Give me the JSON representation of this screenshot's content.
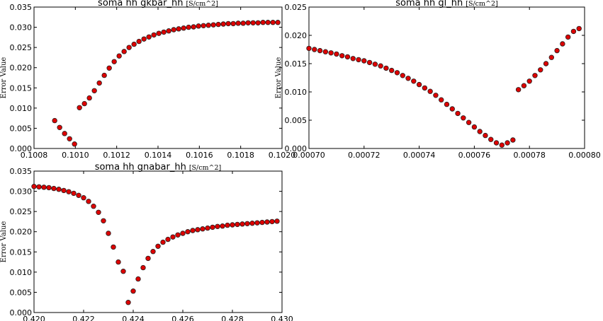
{
  "chart_data": [
    {
      "type": "scatter",
      "title": "soma hh gkbar_hh",
      "title_unit": "[S/cm^2]",
      "xlabel": "",
      "ylabel": "Error Value",
      "xlim": [
        0.1008,
        0.102
      ],
      "ylim": [
        0.0,
        0.035
      ],
      "xticks": [
        "0.1008",
        "0.1010",
        "0.1012",
        "0.1014",
        "0.1016",
        "0.1018",
        "0.1020"
      ],
      "yticks": [
        "0.000",
        "0.005",
        "0.010",
        "0.015",
        "0.020",
        "0.025",
        "0.030",
        "0.035"
      ],
      "grid": false,
      "series": [
        {
          "color": "#dd0000",
          "x": [
            0.1009,
            0.100924,
            0.100948,
            0.100972,
            0.100996,
            0.10102,
            0.101044,
            0.101068,
            0.101092,
            0.101116,
            0.10114,
            0.101164,
            0.101188,
            0.101212,
            0.101236,
            0.10126,
            0.101284,
            0.101308,
            0.101332,
            0.101356,
            0.10138,
            0.101404,
            0.101428,
            0.101452,
            0.101476,
            0.1015,
            0.101524,
            0.101548,
            0.101572,
            0.101596,
            0.10162,
            0.101644,
            0.101668,
            0.101692,
            0.101716,
            0.10174,
            0.101764,
            0.101788,
            0.101812,
            0.101836,
            0.10186,
            0.101884,
            0.101908,
            0.101932,
            0.101956,
            0.10198
          ],
          "y": [
            0.0069,
            0.0052,
            0.0037,
            0.0024,
            0.0011,
            0.0101,
            0.0111,
            0.0125,
            0.0143,
            0.0162,
            0.0181,
            0.0199,
            0.0215,
            0.0229,
            0.024,
            0.025,
            0.0258,
            0.0265,
            0.0271,
            0.0276,
            0.0281,
            0.0285,
            0.0288,
            0.0291,
            0.0294,
            0.0296,
            0.0298,
            0.03,
            0.0301,
            0.0303,
            0.0304,
            0.0305,
            0.0306,
            0.0307,
            0.0308,
            0.0309,
            0.0309,
            0.031,
            0.031,
            0.0311,
            0.0311,
            0.0311,
            0.0312,
            0.0312,
            0.0312,
            0.0312
          ]
        }
      ]
    },
    {
      "type": "scatter",
      "title": "soma hh gl_hh",
      "title_unit": "[S/cm^2]",
      "xlabel": "",
      "ylabel": "Error Value",
      "xlim": [
        0.0007,
        0.0008
      ],
      "ylim": [
        0.0,
        0.025
      ],
      "xticks": [
        "0.00070",
        "0.00072",
        "0.00074",
        "0.00076",
        "0.00078",
        "0.00080"
      ],
      "yticks": [
        "0.000",
        "0.005",
        "0.010",
        "0.015",
        "0.020",
        "0.025"
      ],
      "grid": false,
      "series": [
        {
          "color": "#dd0000",
          "x": [
            0.0007,
            0.000702,
            0.000704,
            0.000706,
            0.000708,
            0.00071,
            0.000712,
            0.000714,
            0.000716,
            0.000718,
            0.00072,
            0.000722,
            0.000724,
            0.000726,
            0.000728,
            0.00073,
            0.000732,
            0.000734,
            0.000736,
            0.000738,
            0.00074,
            0.000742,
            0.000744,
            0.000746,
            0.000748,
            0.00075,
            0.000752,
            0.000754,
            0.000756,
            0.000758,
            0.00076,
            0.000762,
            0.000764,
            0.000766,
            0.000768,
            0.00077,
            0.000772,
            0.000774,
            0.000776,
            0.000778,
            0.00078,
            0.000782,
            0.000784,
            0.000786,
            0.000788,
            0.00079,
            0.000792,
            0.000794,
            0.000796,
            0.000798
          ],
          "y": [
            0.0177,
            0.0175,
            0.0173,
            0.0171,
            0.0169,
            0.0167,
            0.0164,
            0.0162,
            0.0159,
            0.0157,
            0.0155,
            0.0152,
            0.0149,
            0.0146,
            0.0142,
            0.0138,
            0.0134,
            0.0129,
            0.0124,
            0.0119,
            0.0113,
            0.0107,
            0.0101,
            0.0094,
            0.0086,
            0.0078,
            0.007,
            0.0062,
            0.0054,
            0.0046,
            0.0038,
            0.003,
            0.0023,
            0.0016,
            0.001,
            0.0006,
            0.001,
            0.0015,
            0.0104,
            0.0111,
            0.0119,
            0.0129,
            0.0139,
            0.015,
            0.0161,
            0.0173,
            0.0185,
            0.0197,
            0.0207,
            0.0212
          ]
        }
      ]
    },
    {
      "type": "scatter",
      "title": "soma hh gnabar_hh",
      "title_unit": "[S/cm^2]",
      "xlabel": "",
      "ylabel": "Error Value",
      "xlim": [
        0.42,
        0.43
      ],
      "ylim": [
        0.0,
        0.035
      ],
      "xticks": [
        "0.420",
        "0.422",
        "0.424",
        "0.426",
        "0.428",
        "0.430"
      ],
      "yticks": [
        "0.000",
        "0.005",
        "0.010",
        "0.015",
        "0.020",
        "0.025",
        "0.030",
        "0.035"
      ],
      "grid": false,
      "series": [
        {
          "color": "#dd0000",
          "x": [
            0.42,
            0.4202,
            0.4204,
            0.4206,
            0.4208,
            0.421,
            0.4212,
            0.4214,
            0.4216,
            0.4218,
            0.422,
            0.4222,
            0.4224,
            0.4226,
            0.4228,
            0.423,
            0.4232,
            0.4234,
            0.4236,
            0.4238,
            0.424,
            0.4242,
            0.4244,
            0.4246,
            0.4248,
            0.425,
            0.4252,
            0.4254,
            0.4256,
            0.4258,
            0.426,
            0.4262,
            0.4264,
            0.4266,
            0.4268,
            0.427,
            0.4272,
            0.4274,
            0.4276,
            0.4278,
            0.428,
            0.4282,
            0.4284,
            0.4286,
            0.4288,
            0.429,
            0.4292,
            0.4294,
            0.4296,
            0.4298
          ],
          "y": [
            0.0312,
            0.0311,
            0.031,
            0.0309,
            0.0307,
            0.0305,
            0.0302,
            0.0299,
            0.0295,
            0.029,
            0.0284,
            0.0275,
            0.0263,
            0.0248,
            0.0227,
            0.0196,
            0.0162,
            0.0125,
            0.0102,
            0.0025,
            0.0053,
            0.0083,
            0.0111,
            0.0134,
            0.0151,
            0.0164,
            0.0174,
            0.0181,
            0.0187,
            0.0192,
            0.0196,
            0.02,
            0.0203,
            0.0205,
            0.0207,
            0.0209,
            0.0211,
            0.0213,
            0.0214,
            0.0216,
            0.0217,
            0.0218,
            0.0219,
            0.022,
            0.0221,
            0.0222,
            0.0223,
            0.0224,
            0.0225,
            0.0226
          ]
        }
      ]
    }
  ]
}
